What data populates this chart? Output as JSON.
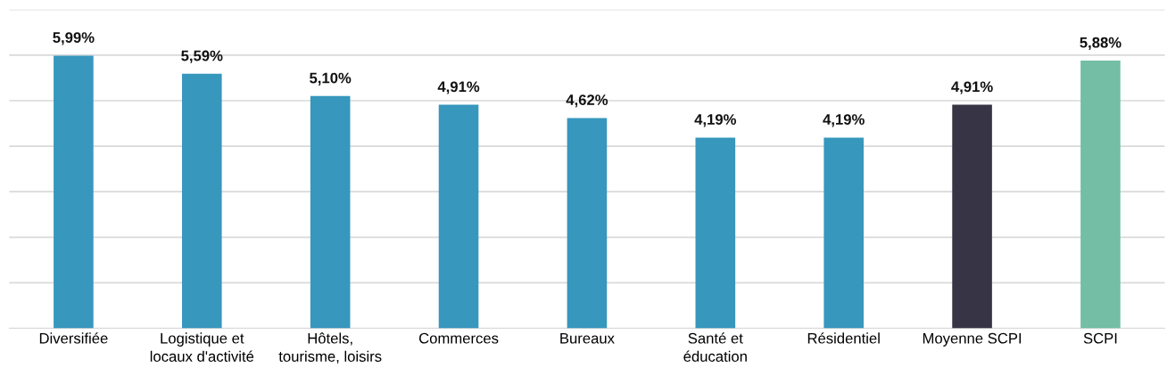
{
  "chart_data": {
    "type": "bar",
    "categories": [
      "Diversifiée",
      "Logistique et\nlocaux d'activité",
      "Hôtels,\ntourisme, loisirs",
      "Commerces",
      "Bureaux",
      "Santé et\néducation",
      "Résidentiel",
      "Moyenne SCPI",
      "SCPI"
    ],
    "values": [
      5.99,
      5.59,
      5.1,
      4.91,
      4.62,
      4.19,
      4.19,
      4.91,
      5.88
    ],
    "colors": [
      "#3797bd",
      "#3797bd",
      "#3797bd",
      "#3797bd",
      "#3797bd",
      "#3797bd",
      "#3797bd",
      "#373545",
      "#73bea5"
    ],
    "value_labels": [
      "5,99%",
      "5,59%",
      "5,10%",
      "4,91%",
      "4,62%",
      "4,19%",
      "4,19%",
      "4,91%",
      "5,88%"
    ],
    "ylim": [
      0,
      7
    ],
    "yticks": [
      {
        "value": 0,
        "label": null
      },
      {
        "value": 1,
        "label": null
      },
      {
        "value": 2,
        "label": null
      },
      {
        "value": 3,
        "label": null
      },
      {
        "value": 4,
        "label": null
      },
      {
        "value": 5,
        "label": null
      },
      {
        "value": 6,
        "label": null
      },
      {
        "value": 7,
        "label": null
      }
    ],
    "tick_labels": "x",
    "grid": "y",
    "legend": false
  }
}
